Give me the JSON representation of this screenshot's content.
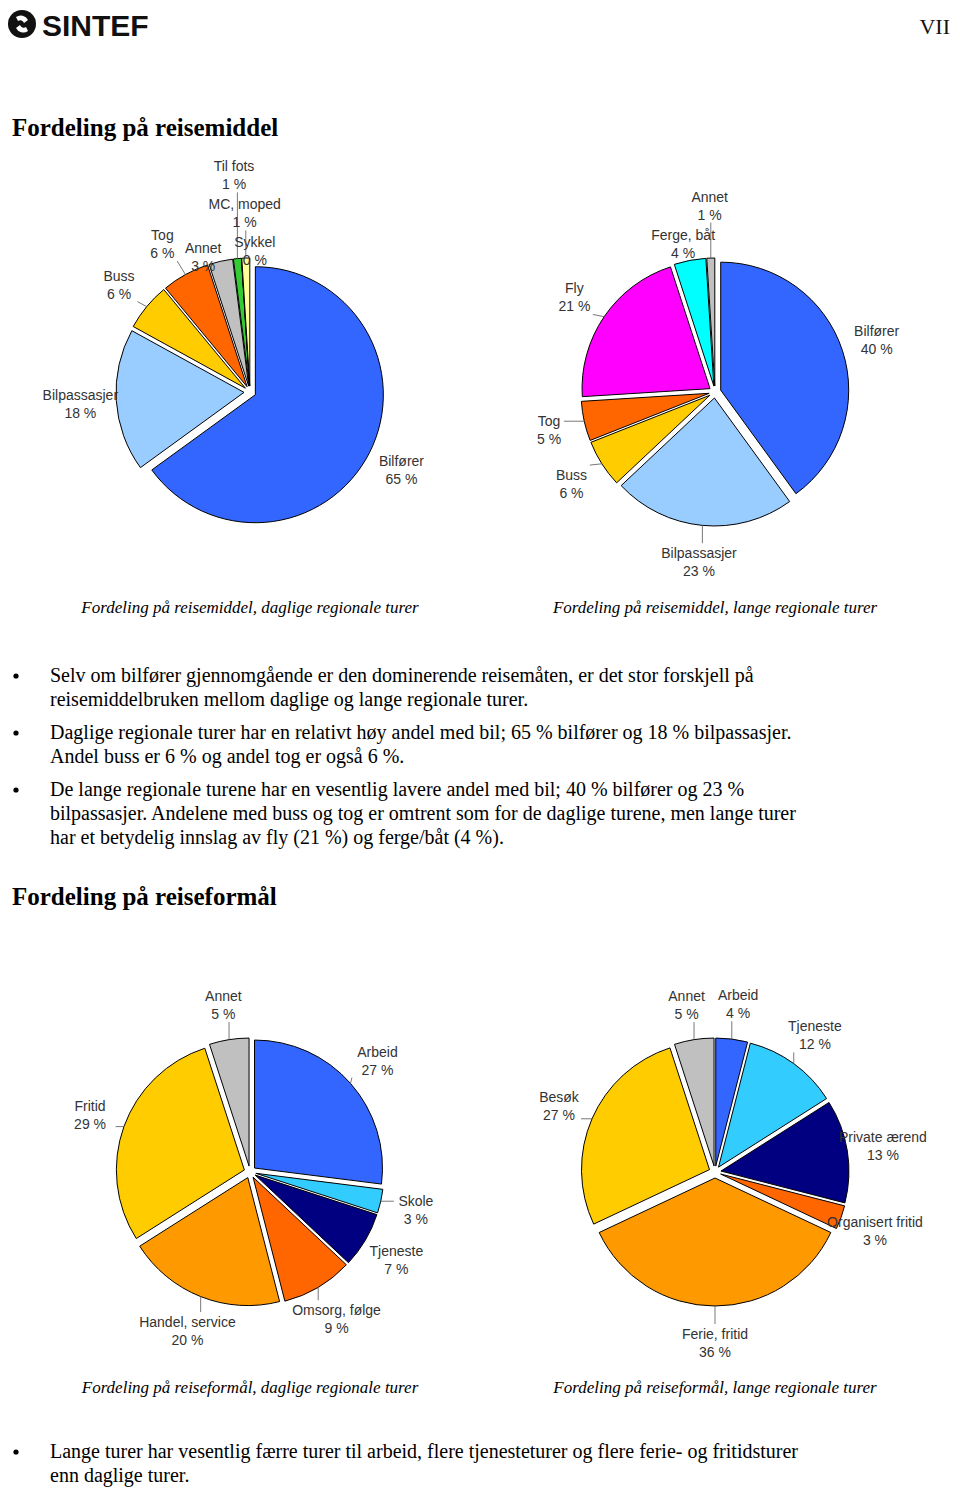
{
  "header": {
    "logo": "SINTEF",
    "page": "VII"
  },
  "sections": [
    {
      "heading": "Fordeling på reisemiddel",
      "bullets": [
        [
          "Selv om bilfører gjennomgående er den dominerende reisemåten, er det stor forskjell på",
          "reisemiddelbruken mellom daglige og lange regionale turer."
        ],
        [
          "Daglige regionale turer har en relativt høy andel med bil; 65 % bilfører og 18 % bilpassasjer.",
          "Andel buss er 6 % og andel tog er også 6 %."
        ],
        [
          "De lange regionale turene har en vesentlig lavere andel med bil; 40 % bilfører og 23 %",
          "bilpassasjer. Andelene med buss og tog er omtrent som for de daglige turene, men lange turer",
          "har et betydelig innslag av fly (21 %) og ferge/båt (4 %)."
        ]
      ]
    },
    {
      "heading": "Fordeling på reiseformål",
      "bullets": [
        [
          "Lange turer har vesentlig færre turer til arbeid, flere tjenesteturer og flere ferie- og fritidsturer",
          "enn daglige turer."
        ]
      ]
    }
  ],
  "chart_data": [
    {
      "type": "pie",
      "title": "Fordeling på reisemiddel, daglige regionale turer",
      "categories": [
        "Bilfører",
        "Bilpassasjer",
        "Buss",
        "Tog",
        "Annet",
        "Til fots",
        "Sykkel",
        "MC, moped"
      ],
      "values": [
        65,
        18,
        6,
        6,
        3,
        1,
        0,
        1
      ],
      "value_labels": [
        "65 %",
        "18 %",
        "6 %",
        "6 %",
        "3 %",
        "1 %",
        "0 %",
        "1 %"
      ],
      "colors": [
        "#3366ff",
        "#99ccff",
        "#ffcc00",
        "#ff6600",
        "#c0c0c0",
        "#33cc33",
        "#ccffcc",
        "#ffff99"
      ],
      "data_labels": true
    },
    {
      "type": "pie",
      "title": "Fordeling på reisemiddel, lange regionale turer",
      "categories": [
        "Bilfører",
        "Bilpassasjer",
        "Buss",
        "Tog",
        "Fly",
        "Ferge, båt",
        "Annet"
      ],
      "values": [
        40,
        23,
        6,
        5,
        21,
        4,
        1
      ],
      "value_labels": [
        "40 %",
        "23 %",
        "6 %",
        "5 %",
        "21 %",
        "4 %",
        "1 %"
      ],
      "colors": [
        "#3366ff",
        "#99ccff",
        "#ffcc00",
        "#ff6600",
        "#ff00ff",
        "#00ffff",
        "#c0c0c0"
      ],
      "data_labels": true
    },
    {
      "type": "pie",
      "title": "Fordeling på reiseformål, daglige regionale turer",
      "categories": [
        "Arbeid",
        "Skole",
        "Tjeneste",
        "Omsorg, følge",
        "Handel, service",
        "Fritid",
        "Annet"
      ],
      "values": [
        27,
        3,
        7,
        9,
        20,
        29,
        5
      ],
      "value_labels": [
        "27 %",
        "3 %",
        "7 %",
        "9 %",
        "20 %",
        "29 %",
        "5 %"
      ],
      "colors": [
        "#3366ff",
        "#33ccff",
        "#000080",
        "#ff6600",
        "#ff9900",
        "#ffcc00",
        "#c0c0c0"
      ],
      "data_labels": true
    },
    {
      "type": "pie",
      "title": "Fordeling på reiseformål, lange regionale turer",
      "categories": [
        "Arbeid",
        "Tjeneste",
        "Private ærend",
        "Organisert fritid",
        "Ferie, fritid",
        "Besøk",
        "Annet"
      ],
      "values": [
        4,
        12,
        13,
        3,
        36,
        27,
        5
      ],
      "value_labels": [
        "4 %",
        "12 %",
        "13 %",
        "3 %",
        "36 %",
        "27 %",
        "5 %"
      ],
      "colors": [
        "#3366ff",
        "#33ccff",
        "#000080",
        "#ff6600",
        "#ff9900",
        "#ffcc00",
        "#c0c0c0"
      ],
      "data_labels": true
    }
  ]
}
